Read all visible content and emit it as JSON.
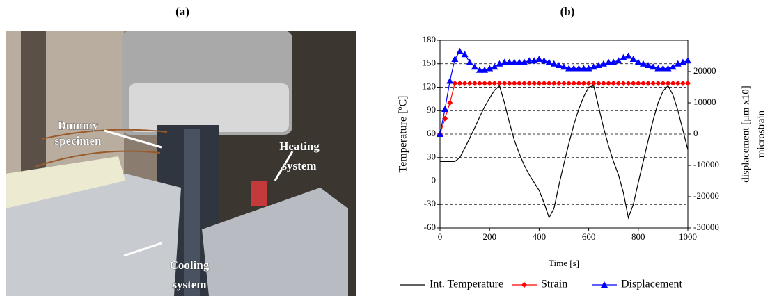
{
  "panels": [
    "(a)",
    "(b)"
  ],
  "photo": {
    "labels": [
      [
        "Dummy",
        "specimen"
      ],
      [
        "Heating",
        "system"
      ],
      [
        "Cooling",
        "system"
      ]
    ]
  },
  "chart_data": {
    "type": "line",
    "x_label": "Time [s]",
    "y_label": "Temperature [ºC]",
    "y2_label": [
      "displacement [µm x10]",
      "microstrain"
    ],
    "x": [
      0,
      20,
      40,
      60,
      80,
      100,
      120,
      140,
      160,
      180,
      200,
      220,
      240,
      260,
      280,
      300,
      320,
      340,
      360,
      380,
      400,
      420,
      440,
      460,
      480,
      500,
      520,
      540,
      560,
      580,
      600,
      620,
      640,
      660,
      680,
      700,
      720,
      740,
      760,
      780,
      800,
      820,
      840,
      860,
      880,
      900,
      920,
      940,
      960,
      980,
      1000
    ],
    "xlim": [
      0,
      1000
    ],
    "xticks": [
      0,
      200,
      400,
      600,
      800,
      1000
    ],
    "ylim": [
      -60,
      180
    ],
    "yticks": [
      -60,
      -30,
      0,
      30,
      60,
      90,
      120,
      150,
      180
    ],
    "y2lim": [
      -30000,
      30000
    ],
    "y2ticks": [
      -30000,
      -20000,
      -10000,
      0,
      10000,
      20000
    ],
    "grid": true,
    "legend": "bottom",
    "series": [
      {
        "name": "Int. Temperature",
        "color": "#000000",
        "marker": "none",
        "values": [
          25,
          25,
          25,
          25,
          30,
          42,
          55,
          68,
          82,
          95,
          106,
          116,
          122,
          100,
          75,
          52,
          35,
          20,
          8,
          -2,
          -12,
          -28,
          -47,
          -35,
          -5,
          22,
          48,
          72,
          92,
          108,
          120,
          122,
          95,
          68,
          45,
          25,
          8,
          -15,
          -47,
          -30,
          -2,
          25,
          52,
          78,
          100,
          115,
          122,
          110,
          90,
          65,
          40
        ]
      },
      {
        "name": "Strain",
        "color": "#ff0000",
        "marker": "diamond",
        "axis": "y2",
        "values": [
          0,
          5000,
          10000,
          16250,
          16250,
          16250,
          16250,
          16250,
          16250,
          16250,
          16250,
          16250,
          16250,
          16250,
          16250,
          16250,
          16250,
          16250,
          16250,
          16250,
          16250,
          16250,
          16250,
          16250,
          16250,
          16250,
          16250,
          16250,
          16250,
          16250,
          16250,
          16250,
          16250,
          16250,
          16250,
          16250,
          16250,
          16250,
          16250,
          16250,
          16250,
          16250,
          16250,
          16250,
          16250,
          16250,
          16250,
          16250,
          16250,
          16250,
          16250
        ]
      },
      {
        "name": "Displacement",
        "color": "#0000ff",
        "marker": "triangle",
        "axis": "y2",
        "values": [
          0,
          8000,
          17000,
          24000,
          26500,
          25500,
          23000,
          21500,
          20500,
          20500,
          21000,
          21500,
          22500,
          23000,
          23000,
          23000,
          23000,
          23000,
          23500,
          23500,
          24000,
          23500,
          23000,
          22500,
          22000,
          21500,
          21000,
          21000,
          21000,
          21000,
          21000,
          21500,
          22000,
          22500,
          23000,
          23000,
          23500,
          24500,
          25000,
          24000,
          23000,
          22500,
          22000,
          21500,
          21000,
          21000,
          21000,
          21500,
          22500,
          23000,
          23500
        ]
      }
    ]
  }
}
